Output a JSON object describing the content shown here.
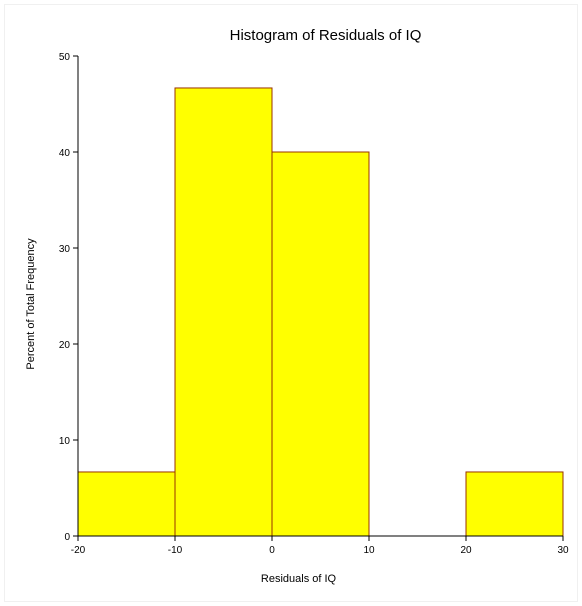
{
  "chart_data": {
    "type": "bar",
    "subtype": "histogram",
    "title": "Histogram of Residuals of IQ",
    "xlabel": "Residuals of IQ",
    "ylabel": "Percent of Total Frequency",
    "xlim": [
      -20,
      30
    ],
    "ylim": [
      0,
      50
    ],
    "x_ticks": [
      -20,
      -10,
      0,
      10,
      20,
      30
    ],
    "y_ticks": [
      0,
      10,
      20,
      30,
      40,
      50
    ],
    "bins": [
      {
        "from": -20,
        "to": -10,
        "value": 6.67
      },
      {
        "from": -10,
        "to": 0,
        "value": 46.67
      },
      {
        "from": 0,
        "to": 10,
        "value": 40.0
      },
      {
        "from": 10,
        "to": 20,
        "value": 0
      },
      {
        "from": 20,
        "to": 30,
        "value": 6.67
      }
    ],
    "bar_fill": "#ffff00",
    "bar_stroke": "#993300",
    "grid": false,
    "legend": "none"
  }
}
